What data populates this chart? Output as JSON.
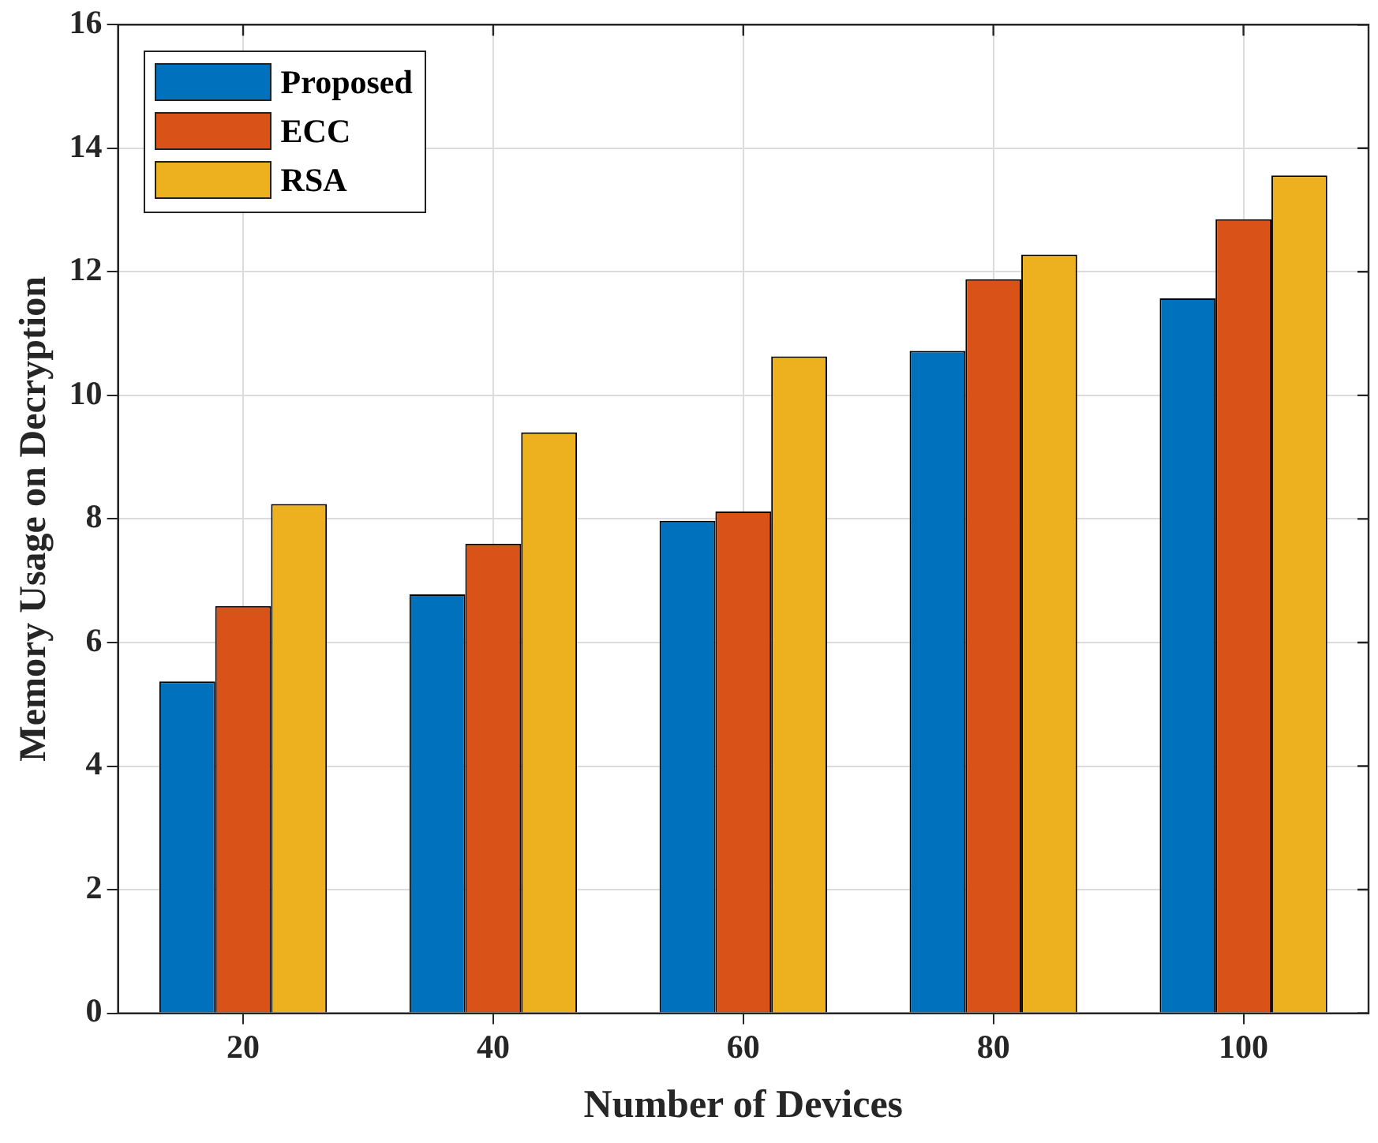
{
  "chart_data": {
    "type": "bar",
    "xlabel": "Number of Devices",
    "ylabel": "Memory Usage on Decryption",
    "categories": [
      "20",
      "40",
      "60",
      "80",
      "100"
    ],
    "series": [
      {
        "name": "Proposed",
        "color": "#0072bd",
        "values": [
          5.37,
          6.78,
          7.97,
          10.72,
          11.57
        ]
      },
      {
        "name": "ECC",
        "color": "#d95319",
        "values": [
          6.59,
          7.6,
          8.12,
          11.88,
          12.85
        ]
      },
      {
        "name": "RSA",
        "color": "#edb120",
        "values": [
          8.24,
          9.4,
          10.63,
          12.28,
          13.56
        ]
      }
    ],
    "ylim": [
      0,
      16
    ],
    "yticks": [
      0,
      2,
      4,
      6,
      8,
      10,
      12,
      14,
      16
    ],
    "grid": true,
    "legend": "top left"
  }
}
